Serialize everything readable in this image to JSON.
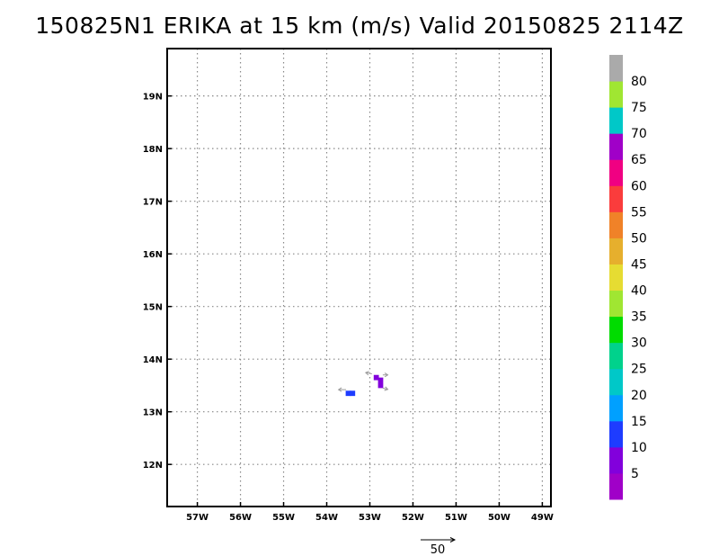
{
  "chart_data": {
    "type": "heatmap",
    "title": "150825N1 ERIKA at 15 km (m/s) Valid 20150825 2114Z",
    "x_ticks": [
      -57,
      -56,
      -55,
      -54,
      -53,
      -52,
      -51,
      -50,
      -49
    ],
    "x_tick_labels": [
      "57W",
      "56W",
      "55W",
      "54W",
      "53W",
      "52W",
      "51W",
      "50W",
      "49W"
    ],
    "y_ticks": [
      12,
      13,
      14,
      15,
      16,
      17,
      18,
      19
    ],
    "y_tick_labels": [
      "12N",
      "13N",
      "14N",
      "15N",
      "16N",
      "17N",
      "18N",
      "19N"
    ],
    "xlim": [
      -57.7,
      -48.8
    ],
    "ylim": [
      11.2,
      19.9
    ],
    "grid": true,
    "colorbar": {
      "placement": "right",
      "labels": [
        "5",
        "10",
        "15",
        "20",
        "25",
        "30",
        "35",
        "40",
        "45",
        "50",
        "55",
        "60",
        "65",
        "70",
        "75",
        "80"
      ],
      "colors": [
        "#a000c8",
        "#8200dc",
        "#1e3cff",
        "#00a0ff",
        "#00c8c8",
        "#00d28c",
        "#00dc00",
        "#a0e632",
        "#e6dc32",
        "#e6af2d",
        "#f08228",
        "#fa3c3c",
        "#f00082",
        "#a000c8",
        "#00c8c8",
        "#a0e632",
        "#aaaaaa"
      ]
    },
    "cells": [
      {
        "lon": -53.5,
        "lat": 13.35,
        "value": 12
      },
      {
        "lon": -53.4,
        "lat": 13.35,
        "value": 12
      },
      {
        "lon": -52.85,
        "lat": 13.65,
        "value": 8
      },
      {
        "lon": -52.75,
        "lat": 13.6,
        "value": 8
      },
      {
        "lon": -52.75,
        "lat": 13.5,
        "value": 7
      }
    ],
    "vectors": [
      {
        "lon": -53.55,
        "lat": 13.42,
        "u": -12,
        "v": 0
      },
      {
        "lon": -52.95,
        "lat": 13.72,
        "u": -10,
        "v": 2
      },
      {
        "lon": -52.7,
        "lat": 13.45,
        "u": 8,
        "v": -2
      },
      {
        "lon": -52.7,
        "lat": 13.7,
        "u": 8,
        "v": 0
      }
    ],
    "reference_vector": {
      "value": 50,
      "label": "50"
    }
  }
}
